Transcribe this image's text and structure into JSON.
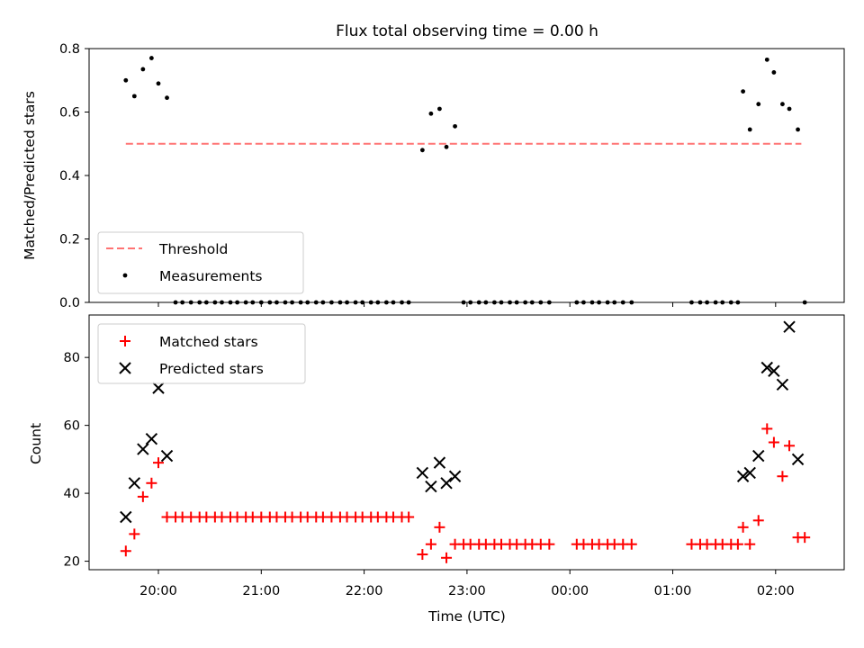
{
  "chart_data": [
    {
      "type": "scatter",
      "title": "Flux total observing time = 0.00 h",
      "xlabel": "",
      "ylabel": "Matched/Predicted stars",
      "ylim": [
        0,
        0.8
      ],
      "yticks": [
        "0.0",
        "0.2",
        "0.4",
        "0.6",
        "0.8"
      ],
      "legend_position": "lower-left",
      "threshold": {
        "name": "Threshold",
        "value": 0.5,
        "x_start": "19:41",
        "x_end": "02:15",
        "color": "#ff7373"
      },
      "series": [
        {
          "name": "Measurements",
          "color": "#000000",
          "points": [
            [
              "19:41",
              0.7
            ],
            [
              "19:46",
              0.65
            ],
            [
              "19:51",
              0.735
            ],
            [
              "19:56",
              0.77
            ],
            [
              "20:00",
              0.69
            ],
            [
              "20:05",
              0.645
            ],
            [
              "20:10",
              0
            ],
            [
              "20:14",
              0
            ],
            [
              "20:19",
              0
            ],
            [
              "20:24",
              0
            ],
            [
              "20:28",
              0
            ],
            [
              "20:33",
              0
            ],
            [
              "20:37",
              0
            ],
            [
              "20:42",
              0
            ],
            [
              "20:46",
              0
            ],
            [
              "20:51",
              0
            ],
            [
              "20:55",
              0
            ],
            [
              "21:00",
              0
            ],
            [
              "21:05",
              0
            ],
            [
              "21:09",
              0
            ],
            [
              "21:14",
              0
            ],
            [
              "21:18",
              0
            ],
            [
              "21:23",
              0
            ],
            [
              "21:27",
              0
            ],
            [
              "21:32",
              0
            ],
            [
              "21:36",
              0
            ],
            [
              "21:41",
              0
            ],
            [
              "21:46",
              0
            ],
            [
              "21:50",
              0
            ],
            [
              "21:55",
              0
            ],
            [
              "21:59",
              0
            ],
            [
              "22:04",
              0
            ],
            [
              "22:08",
              0
            ],
            [
              "22:13",
              0
            ],
            [
              "22:17",
              0
            ],
            [
              "22:22",
              0
            ],
            [
              "22:26",
              0
            ],
            [
              "22:34",
              0.48
            ],
            [
              "22:39",
              0.595
            ],
            [
              "22:44",
              0.61
            ],
            [
              "22:48",
              0.49
            ],
            [
              "22:53",
              0.555
            ],
            [
              "22:58",
              0
            ],
            [
              "23:02",
              0
            ],
            [
              "23:07",
              0
            ],
            [
              "23:11",
              0
            ],
            [
              "23:16",
              0
            ],
            [
              "23:20",
              0
            ],
            [
              "23:25",
              0
            ],
            [
              "23:29",
              0
            ],
            [
              "23:34",
              0
            ],
            [
              "23:38",
              0
            ],
            [
              "23:43",
              0
            ],
            [
              "23:48",
              0
            ],
            [
              "00:04",
              0
            ],
            [
              "00:08",
              0
            ],
            [
              "00:13",
              0
            ],
            [
              "00:17",
              0
            ],
            [
              "00:22",
              0
            ],
            [
              "00:26",
              0
            ],
            [
              "00:31",
              0
            ],
            [
              "00:36",
              0
            ],
            [
              "01:11",
              0
            ],
            [
              "01:16",
              0
            ],
            [
              "01:20",
              0
            ],
            [
              "01:25",
              0
            ],
            [
              "01:29",
              0
            ],
            [
              "01:34",
              0
            ],
            [
              "01:38",
              0
            ],
            [
              "01:41",
              0.665
            ],
            [
              "01:45",
              0.545
            ],
            [
              "01:50",
              0.625
            ],
            [
              "01:55",
              0.765
            ],
            [
              "01:59",
              0.725
            ],
            [
              "02:04",
              0.625
            ],
            [
              "02:08",
              0.61
            ],
            [
              "02:13",
              0.545
            ],
            [
              "02:17",
              0
            ]
          ]
        }
      ]
    },
    {
      "type": "scatter",
      "title": "",
      "xlabel": "Time (UTC)",
      "ylabel": "Count",
      "ylim": [
        17.5,
        92.5
      ],
      "yticks": [
        "20",
        "40",
        "60",
        "80"
      ],
      "xticks": [
        "20:00",
        "21:00",
        "22:00",
        "23:00",
        "00:00",
        "01:00",
        "02:00"
      ],
      "legend_position": "upper-left",
      "series": [
        {
          "name": "Matched stars",
          "color": "#ff0000",
          "marker": "plus",
          "points": [
            [
              "19:41",
              23
            ],
            [
              "19:46",
              28
            ],
            [
              "19:51",
              39
            ],
            [
              "19:56",
              43
            ],
            [
              "20:00",
              49
            ],
            [
              "20:05",
              33
            ],
            [
              "20:10",
              33
            ],
            [
              "20:14",
              33
            ],
            [
              "20:19",
              33
            ],
            [
              "20:24",
              33
            ],
            [
              "20:28",
              33
            ],
            [
              "20:33",
              33
            ],
            [
              "20:37",
              33
            ],
            [
              "20:42",
              33
            ],
            [
              "20:46",
              33
            ],
            [
              "20:51",
              33
            ],
            [
              "20:55",
              33
            ],
            [
              "21:00",
              33
            ],
            [
              "21:05",
              33
            ],
            [
              "21:09",
              33
            ],
            [
              "21:14",
              33
            ],
            [
              "21:18",
              33
            ],
            [
              "21:23",
              33
            ],
            [
              "21:27",
              33
            ],
            [
              "21:32",
              33
            ],
            [
              "21:36",
              33
            ],
            [
              "21:41",
              33
            ],
            [
              "21:46",
              33
            ],
            [
              "21:50",
              33
            ],
            [
              "21:55",
              33
            ],
            [
              "21:59",
              33
            ],
            [
              "22:04",
              33
            ],
            [
              "22:08",
              33
            ],
            [
              "22:13",
              33
            ],
            [
              "22:17",
              33
            ],
            [
              "22:22",
              33
            ],
            [
              "22:26",
              33
            ],
            [
              "22:34",
              22
            ],
            [
              "22:39",
              25
            ],
            [
              "22:44",
              30
            ],
            [
              "22:48",
              21
            ],
            [
              "22:53",
              25
            ],
            [
              "22:58",
              25
            ],
            [
              "23:02",
              25
            ],
            [
              "23:07",
              25
            ],
            [
              "23:11",
              25
            ],
            [
              "23:16",
              25
            ],
            [
              "23:20",
              25
            ],
            [
              "23:25",
              25
            ],
            [
              "23:29",
              25
            ],
            [
              "23:34",
              25
            ],
            [
              "23:38",
              25
            ],
            [
              "23:43",
              25
            ],
            [
              "23:48",
              25
            ],
            [
              "00:04",
              25
            ],
            [
              "00:08",
              25
            ],
            [
              "00:13",
              25
            ],
            [
              "00:17",
              25
            ],
            [
              "00:22",
              25
            ],
            [
              "00:26",
              25
            ],
            [
              "00:31",
              25
            ],
            [
              "00:36",
              25
            ],
            [
              "01:11",
              25
            ],
            [
              "01:16",
              25
            ],
            [
              "01:20",
              25
            ],
            [
              "01:25",
              25
            ],
            [
              "01:29",
              25
            ],
            [
              "01:34",
              25
            ],
            [
              "01:38",
              25
            ],
            [
              "01:41",
              30
            ],
            [
              "01:45",
              25
            ],
            [
              "01:50",
              32
            ],
            [
              "01:55",
              59
            ],
            [
              "01:59",
              55
            ],
            [
              "02:04",
              45
            ],
            [
              "02:08",
              54
            ],
            [
              "02:13",
              27
            ],
            [
              "02:17",
              27
            ]
          ]
        },
        {
          "name": "Predicted stars",
          "color": "#000000",
          "marker": "x",
          "points": [
            [
              "19:41",
              33
            ],
            [
              "19:46",
              43
            ],
            [
              "19:51",
              53
            ],
            [
              "19:56",
              56
            ],
            [
              "20:00",
              71
            ],
            [
              "20:05",
              51
            ],
            [
              "22:34",
              46
            ],
            [
              "22:39",
              42
            ],
            [
              "22:44",
              49
            ],
            [
              "22:48",
              43
            ],
            [
              "22:53",
              45
            ],
            [
              "01:41",
              45
            ],
            [
              "01:45",
              46
            ],
            [
              "01:50",
              51
            ],
            [
              "01:55",
              77
            ],
            [
              "01:59",
              76
            ],
            [
              "02:04",
              72
            ],
            [
              "02:08",
              89
            ],
            [
              "02:13",
              50
            ]
          ]
        }
      ]
    }
  ]
}
